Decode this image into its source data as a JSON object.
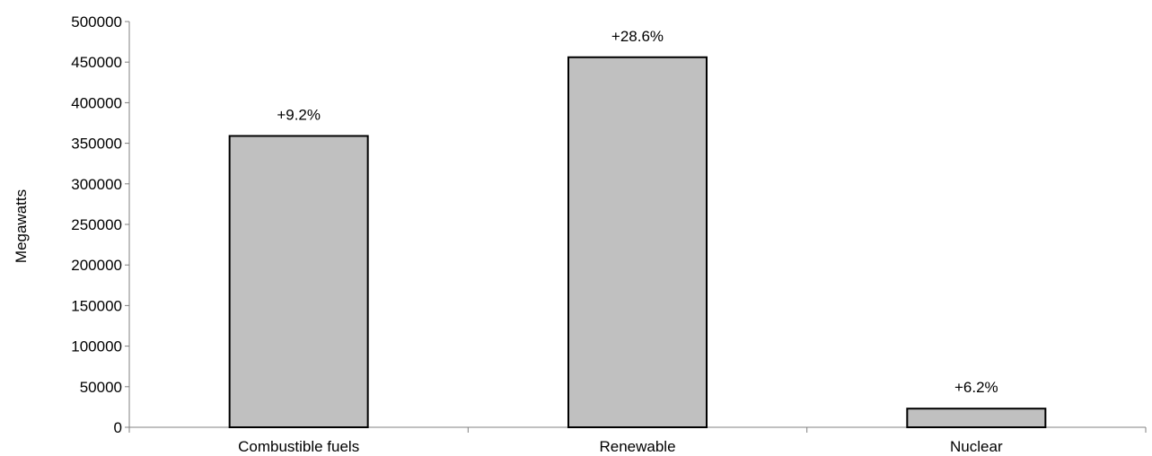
{
  "chart_data": {
    "type": "bar",
    "title": "",
    "xlabel": "",
    "ylabel": "Megawatts",
    "categories": [
      "Combustible fuels",
      "Renewable",
      "Nuclear"
    ],
    "values": [
      359000,
      456000,
      23000
    ],
    "data_labels": [
      "+9.2%",
      "+28.6%",
      "+6.2%"
    ],
    "ylim": [
      0,
      500000
    ],
    "yticks": [
      0,
      50000,
      100000,
      150000,
      200000,
      250000,
      300000,
      350000,
      400000,
      450000,
      500000
    ],
    "grid": false,
    "legend": "none",
    "colors": {
      "bar_fill": "#c0c0c0",
      "bar_stroke": "#000000",
      "axis": "#808080"
    }
  }
}
